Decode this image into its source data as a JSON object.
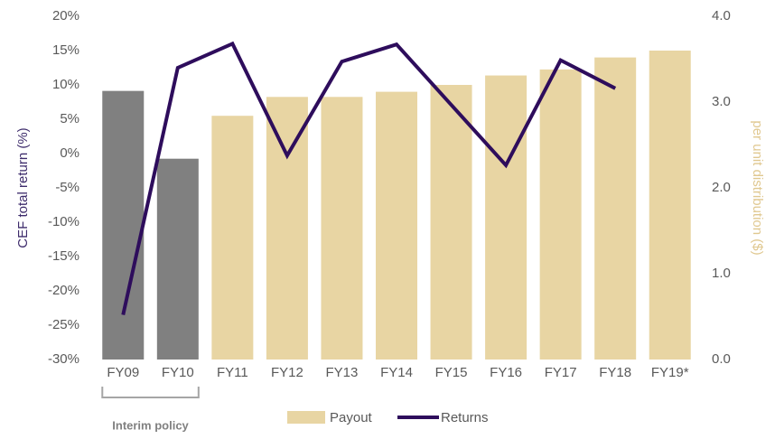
{
  "chart_data": {
    "type": "bar_line",
    "categories": [
      "FY09",
      "FY10",
      "FY11",
      "FY12",
      "FY13",
      "FY14",
      "FY15",
      "FY16",
      "FY17",
      "FY18",
      "FY19*"
    ],
    "series": [
      {
        "name": "Payout",
        "type": "bar",
        "axis": "y2",
        "color": "#e8d5a3",
        "colors": [
          "#808080",
          "#808080",
          "#e8d5a3",
          "#e8d5a3",
          "#e8d5a3",
          "#e8d5a3",
          "#e8d5a3",
          "#e8d5a3",
          "#e8d5a3",
          "#e8d5a3",
          "#e8d5a3"
        ],
        "values": [
          3.13,
          2.34,
          2.84,
          3.06,
          3.06,
          3.12,
          3.2,
          3.31,
          3.38,
          3.52,
          3.6
        ]
      },
      {
        "name": "Returns",
        "type": "line",
        "color": "#2e0d5c",
        "values": [
          -23.5,
          12.5,
          16,
          -0.3,
          13.4,
          15.9,
          7.1,
          -1.7,
          13.6,
          9.5,
          null
        ]
      }
    ],
    "ylabel": "CEF total return (%)",
    "ylabel_color": "#3d2b6b",
    "y2label": "per unit distribution ($)",
    "y2label_color": "#e0c890",
    "ylim": [
      -30,
      20
    ],
    "yticks": [
      {
        "value": -30,
        "label": "-30%"
      },
      {
        "value": -25,
        "label": "-25%"
      },
      {
        "value": -20,
        "label": "-20%"
      },
      {
        "value": -15,
        "label": "-15%"
      },
      {
        "value": -10,
        "label": "-10%"
      },
      {
        "value": -5,
        "label": "-5%"
      },
      {
        "value": 0,
        "label": "0%"
      },
      {
        "value": 5,
        "label": "5%"
      },
      {
        "value": 10,
        "label": "10%"
      },
      {
        "value": 15,
        "label": "15%"
      },
      {
        "value": 20,
        "label": "20%"
      }
    ],
    "y2lim": [
      0,
      4
    ],
    "y2ticks": [
      {
        "value": 0,
        "label": "0.0"
      },
      {
        "value": 1,
        "label": "1.0"
      },
      {
        "value": 2,
        "label": "2.0"
      },
      {
        "value": 3,
        "label": "3.0"
      },
      {
        "value": 4,
        "label": "4.0"
      }
    ],
    "annotation": "Interim policy",
    "legend": "bottom"
  }
}
